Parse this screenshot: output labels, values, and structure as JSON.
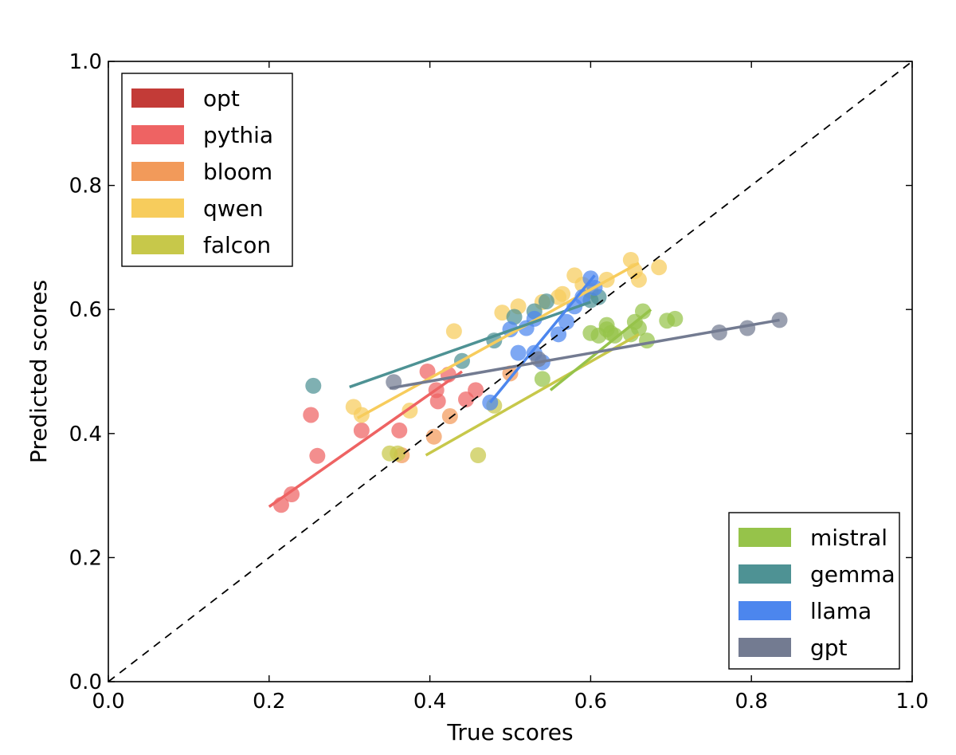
{
  "chart_data": {
    "type": "scatter",
    "title": "",
    "xlabel": "True scores",
    "ylabel": "Predicted scores",
    "xlim": [
      0.0,
      1.0
    ],
    "ylim": [
      0.0,
      1.0
    ],
    "xticks": [
      "0.0",
      "0.2",
      "0.4",
      "0.6",
      "0.8",
      "1.0"
    ],
    "yticks": [
      "0.0",
      "0.2",
      "0.4",
      "0.6",
      "0.8",
      "1.0"
    ],
    "grid": false,
    "identity_line": true,
    "legends": [
      {
        "position": "top-left",
        "entries": [
          "opt",
          "pythia",
          "bloom",
          "qwen",
          "falcon"
        ]
      },
      {
        "position": "bottom-right",
        "entries": [
          "mistral",
          "gemma",
          "llama",
          "gpt"
        ]
      }
    ],
    "series": [
      {
        "name": "opt",
        "color": "#c33b37",
        "points": [],
        "fit": null
      },
      {
        "name": "pythia",
        "color": "#ee6363",
        "points": [
          [
            0.215,
            0.285
          ],
          [
            0.228,
            0.302
          ],
          [
            0.252,
            0.43
          ],
          [
            0.26,
            0.364
          ],
          [
            0.315,
            0.405
          ],
          [
            0.362,
            0.405
          ],
          [
            0.397,
            0.5
          ],
          [
            0.408,
            0.47
          ],
          [
            0.41,
            0.452
          ],
          [
            0.423,
            0.495
          ],
          [
            0.445,
            0.455
          ],
          [
            0.457,
            0.47
          ]
        ],
        "fit": [
          [
            0.2,
            0.282
          ],
          [
            0.44,
            0.5
          ]
        ]
      },
      {
        "name": "bloom",
        "color": "#f29a5a",
        "points": [
          [
            0.365,
            0.365
          ],
          [
            0.405,
            0.395
          ],
          [
            0.425,
            0.428
          ],
          [
            0.5,
            0.497
          ]
        ],
        "fit": null
      },
      {
        "name": "qwen",
        "color": "#f7cc5c",
        "points": [
          [
            0.305,
            0.443
          ],
          [
            0.315,
            0.43
          ],
          [
            0.375,
            0.437
          ],
          [
            0.43,
            0.565
          ],
          [
            0.49,
            0.595
          ],
          [
            0.51,
            0.605
          ],
          [
            0.54,
            0.612
          ],
          [
            0.56,
            0.62
          ],
          [
            0.565,
            0.625
          ],
          [
            0.58,
            0.655
          ],
          [
            0.59,
            0.64
          ],
          [
            0.6,
            0.63
          ],
          [
            0.62,
            0.648
          ],
          [
            0.65,
            0.68
          ],
          [
            0.655,
            0.662
          ],
          [
            0.66,
            0.648
          ],
          [
            0.685,
            0.668
          ]
        ],
        "fit": [
          [
            0.31,
            0.425
          ],
          [
            0.66,
            0.675
          ]
        ]
      },
      {
        "name": "falcon",
        "color": "#c7c84a",
        "points": [
          [
            0.35,
            0.368
          ],
          [
            0.36,
            0.368
          ],
          [
            0.46,
            0.365
          ],
          [
            0.48,
            0.445
          ]
        ],
        "fit": [
          [
            0.395,
            0.365
          ],
          [
            0.66,
            0.56
          ]
        ]
      },
      {
        "name": "mistral",
        "color": "#96c34a",
        "points": [
          [
            0.54,
            0.488
          ],
          [
            0.6,
            0.562
          ],
          [
            0.61,
            0.558
          ],
          [
            0.62,
            0.568
          ],
          [
            0.62,
            0.575
          ],
          [
            0.625,
            0.562
          ],
          [
            0.63,
            0.558
          ],
          [
            0.65,
            0.56
          ],
          [
            0.655,
            0.58
          ],
          [
            0.66,
            0.57
          ],
          [
            0.665,
            0.597
          ],
          [
            0.67,
            0.55
          ],
          [
            0.695,
            0.582
          ],
          [
            0.705,
            0.585
          ]
        ],
        "fit": [
          [
            0.55,
            0.47
          ],
          [
            0.675,
            0.6
          ]
        ]
      },
      {
        "name": "gemma",
        "color": "#4e9294",
        "points": [
          [
            0.255,
            0.477
          ],
          [
            0.44,
            0.517
          ],
          [
            0.48,
            0.55
          ],
          [
            0.505,
            0.588
          ],
          [
            0.53,
            0.597
          ],
          [
            0.545,
            0.613
          ],
          [
            0.6,
            0.615
          ],
          [
            0.61,
            0.62
          ]
        ],
        "fit": [
          [
            0.3,
            0.475
          ],
          [
            0.6,
            0.612
          ]
        ]
      },
      {
        "name": "llama",
        "color": "#4c86ee",
        "points": [
          [
            0.475,
            0.45
          ],
          [
            0.5,
            0.568
          ],
          [
            0.51,
            0.53
          ],
          [
            0.52,
            0.57
          ],
          [
            0.53,
            0.585
          ],
          [
            0.53,
            0.53
          ],
          [
            0.54,
            0.515
          ],
          [
            0.56,
            0.56
          ],
          [
            0.57,
            0.58
          ],
          [
            0.58,
            0.605
          ],
          [
            0.59,
            0.62
          ],
          [
            0.6,
            0.65
          ],
          [
            0.605,
            0.635
          ]
        ],
        "fit": [
          [
            0.475,
            0.45
          ],
          [
            0.605,
            0.655
          ]
        ]
      },
      {
        "name": "gpt",
        "color": "#737b91",
        "points": [
          [
            0.355,
            0.483
          ],
          [
            0.535,
            0.52
          ],
          [
            0.76,
            0.563
          ],
          [
            0.795,
            0.57
          ],
          [
            0.835,
            0.583
          ]
        ],
        "fit": [
          [
            0.35,
            0.473
          ],
          [
            0.835,
            0.583
          ]
        ]
      }
    ]
  }
}
